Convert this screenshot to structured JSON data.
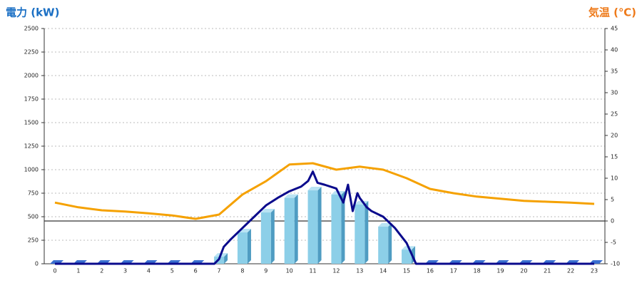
{
  "chart_data": {
    "type": "combo",
    "y_label": "電力 (kW)",
    "y2_label": "気温 (℃)",
    "categories": [
      "0",
      "1",
      "2",
      "3",
      "4",
      "5",
      "6",
      "7",
      "8",
      "9",
      "10",
      "11",
      "12",
      "13",
      "14",
      "15",
      "16",
      "17",
      "18",
      "19",
      "20",
      "21",
      "22",
      "23"
    ],
    "ylim": [
      0,
      2500
    ],
    "yticks": [
      0,
      250,
      500,
      750,
      1000,
      1250,
      1500,
      1750,
      2000,
      2250,
      2500
    ],
    "y2lim": [
      -10,
      45
    ],
    "y2ticks": [
      -10,
      -5,
      0,
      5,
      10,
      15,
      20,
      25,
      30,
      35,
      40,
      45
    ],
    "grid": true,
    "series": [
      {
        "type": "bar",
        "color": "#8ccfe8",
        "values": [
          0,
          0,
          0,
          0,
          0,
          0,
          0,
          75,
          333,
          545,
          700,
          780,
          735,
          630,
          395,
          150,
          0,
          0,
          0,
          0,
          0,
          0,
          0,
          0
        ]
      },
      {
        "type": "line",
        "color": "#0a0a8c",
        "x": [
          0,
          6.8,
          7.0,
          7.2,
          7.5,
          8,
          8.5,
          9,
          9.5,
          10,
          10.5,
          10.8,
          11,
          11.2,
          11.5,
          12,
          12.3,
          12.5,
          12.7,
          12.9,
          13,
          13.3,
          13.5,
          14,
          14.5,
          15,
          15.4,
          16,
          23
        ],
        "values": [
          0,
          0,
          50,
          180,
          260,
          380,
          500,
          620,
          700,
          770,
          820,
          880,
          980,
          860,
          840,
          800,
          650,
          840,
          560,
          750,
          700,
          600,
          560,
          500,
          380,
          220,
          0,
          0,
          0
        ]
      },
      {
        "type": "line",
        "axis": "y2",
        "color": "#f5a100",
        "values": [
          4.3,
          3.2,
          2.5,
          2.2,
          1.8,
          1.3,
          0.5,
          1.5,
          6.2,
          9.3,
          13.2,
          13.5,
          12,
          12.7,
          12,
          10,
          7.5,
          6.5,
          5.7,
          5.2,
          4.7,
          4.5,
          4.3,
          4.0
        ]
      }
    ]
  }
}
